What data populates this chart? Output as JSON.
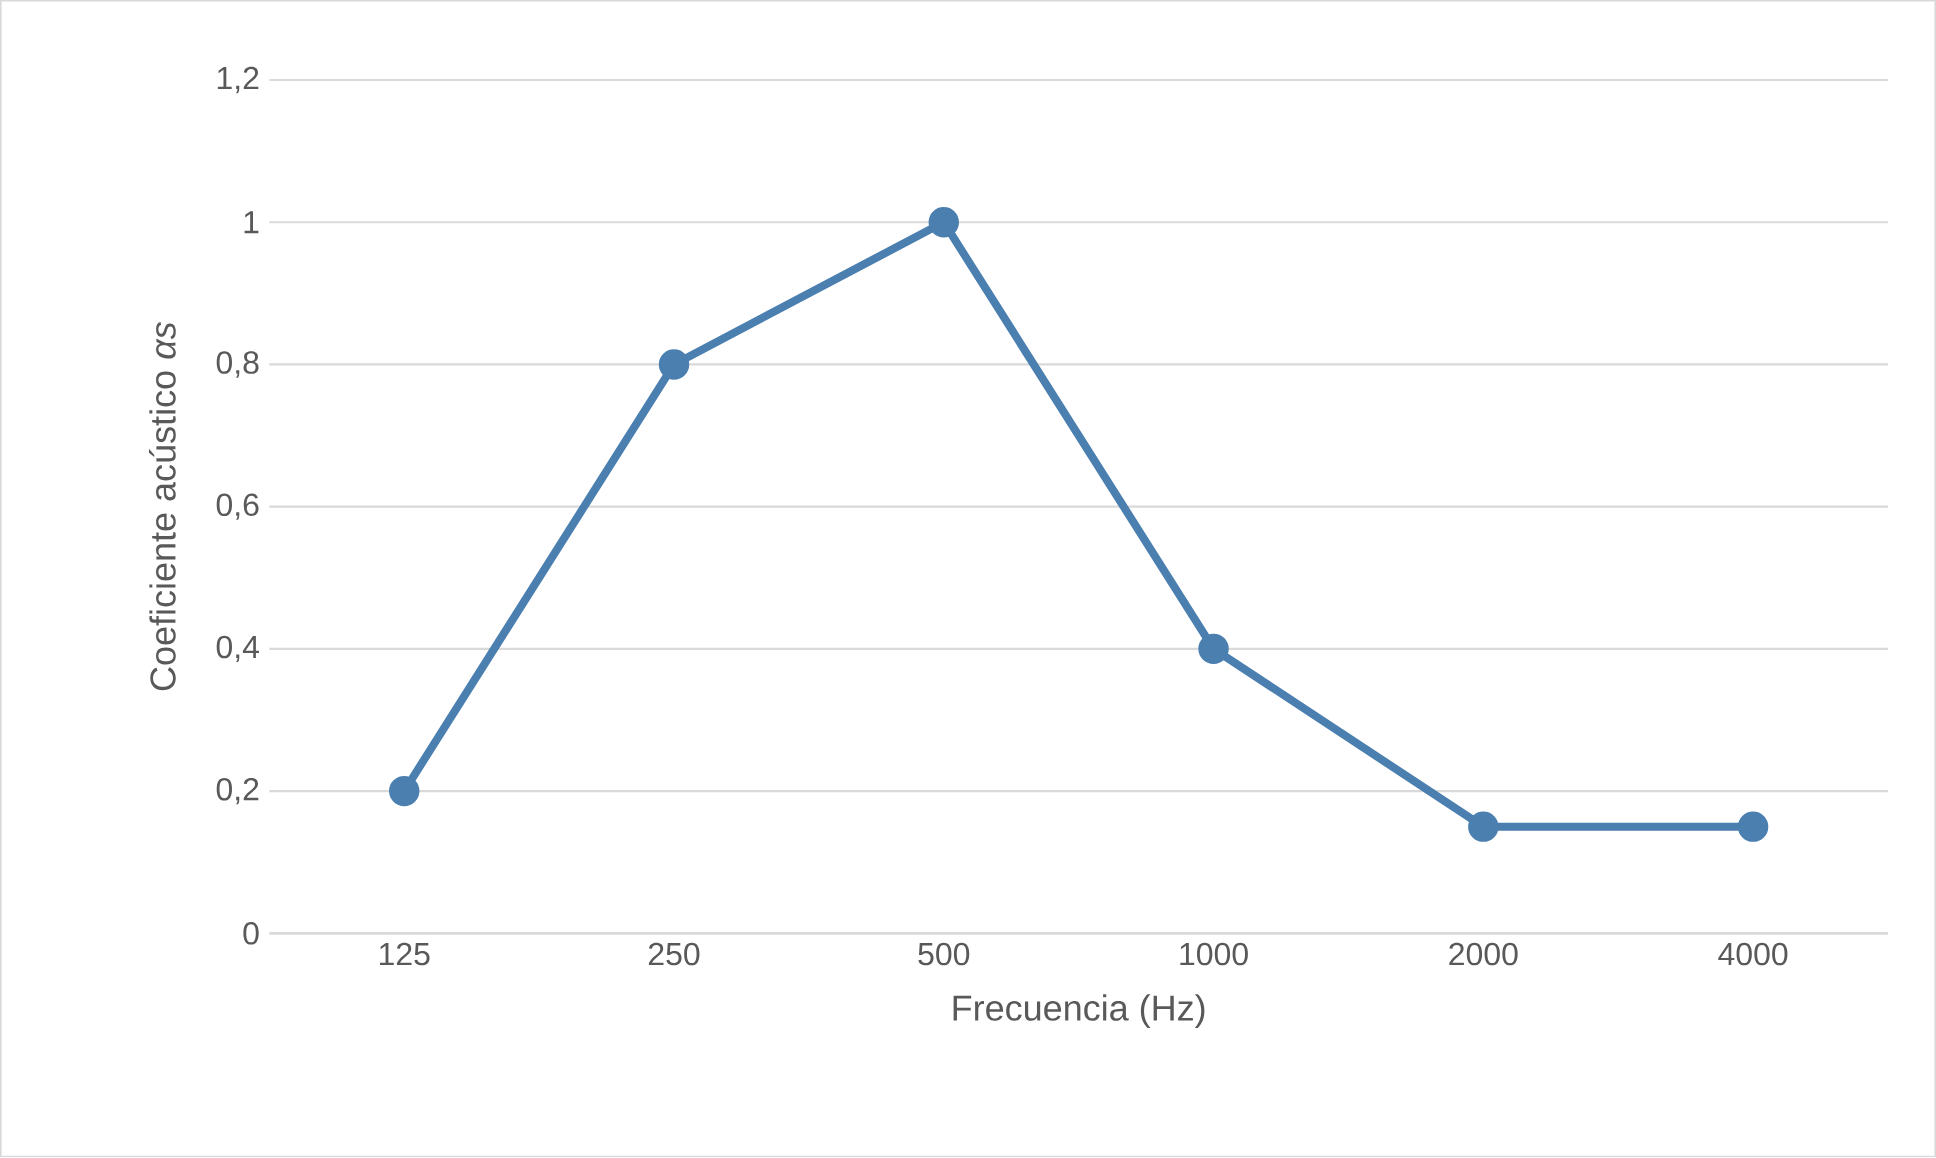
{
  "chart_data": {
    "type": "line",
    "xlabel": "Frecuencia (Hz)",
    "ylabel": "Coeficiente acústico *αs*",
    "categories": [
      "125",
      "250",
      "500",
      "1000",
      "2000",
      "4000"
    ],
    "series": [
      {
        "color": "#4a7fb0",
        "values": [
          0.2,
          0.8,
          1.0,
          0.4,
          0.15,
          0.15
        ]
      }
    ],
    "ylim": [
      0,
      1.2
    ],
    "yticks": [
      0,
      {
        "value": 0.2,
        "label": "0,2"
      },
      {
        "value": 0.4,
        "label": "0,4"
      },
      {
        "value": 0.6,
        "label": "0,6"
      },
      {
        "value": 0.8,
        "label": "0,8"
      },
      1,
      {
        "value": 1.2,
        "label": "1,2"
      }
    ],
    "grid": "y",
    "marker": "circle",
    "line_style": "solid"
  }
}
